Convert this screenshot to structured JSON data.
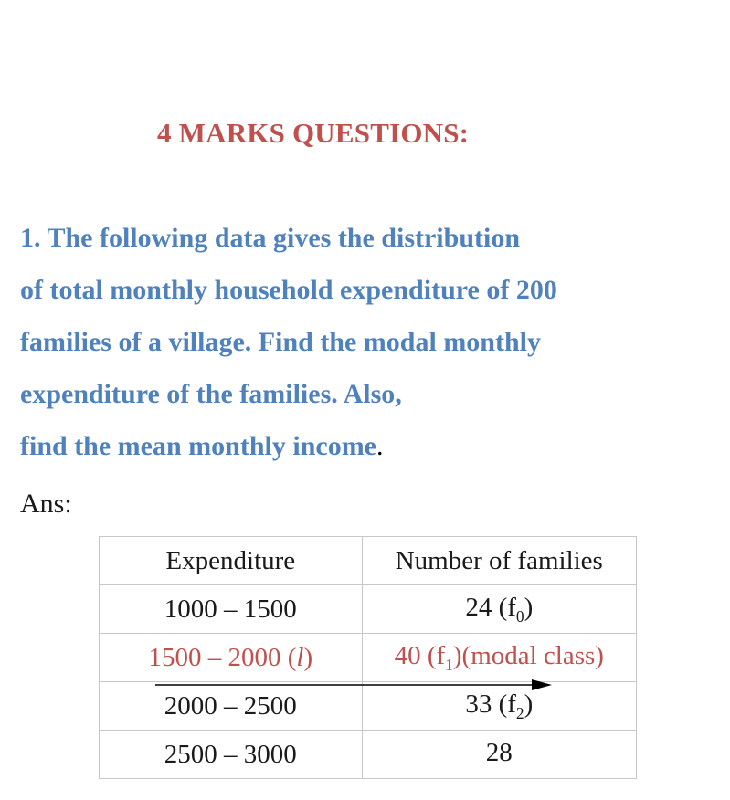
{
  "heading": "4 MARKS QUESTIONS:",
  "question": {
    "lines": [
      "1. The following data gives the distribution",
      " of total monthly household expenditure of 200",
      " families of a village. Find the modal monthly",
      "expenditure of the families. Also,",
      " find the mean monthly income"
    ],
    "end_punct": "."
  },
  "answer_label": "Ans:",
  "table": {
    "headers": [
      "Expenditure",
      "Number of families"
    ],
    "rows": [
      {
        "class": "1000 – 1500",
        "freq": "24 (f",
        "sub": "0",
        "tail": ")"
      },
      {
        "class_pre": "1500 – 2000 (",
        "class_l": "l",
        "class_post": ")",
        "freq": "40 (f",
        "sub": "1",
        "tail": ")(modal class)"
      },
      {
        "class": "2000 – 2500",
        "freq": "33 (f",
        "sub": "2",
        "tail": ")"
      },
      {
        "class": "2500 – 3000",
        "freq": "28",
        "sub": "",
        "tail": ""
      }
    ]
  },
  "colors": {
    "heading": "#c0504d",
    "question": "#4f81bd",
    "modal_row": "#c0504d"
  },
  "icons": {
    "row_arrow": "right-arrow-icon"
  }
}
